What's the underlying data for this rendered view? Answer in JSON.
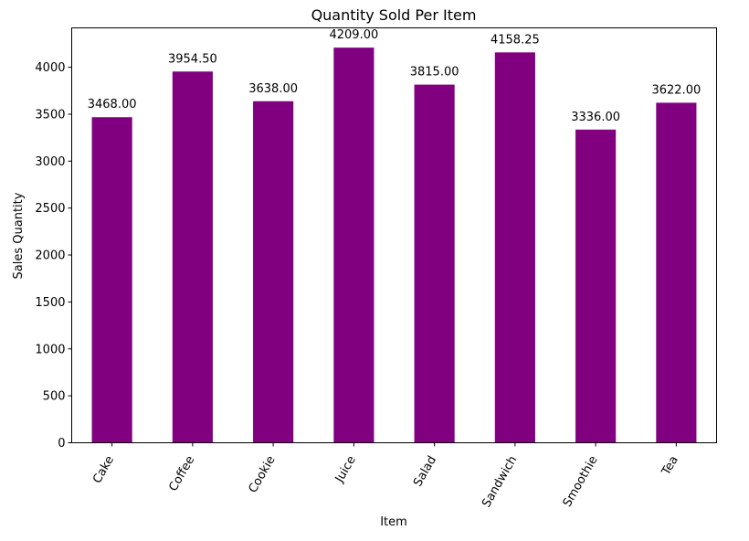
{
  "chart_data": {
    "type": "bar",
    "title": "Quantity Sold Per Item",
    "xlabel": "Item",
    "ylabel": "Sales Quantity",
    "categories": [
      "Cake",
      "Coffee",
      "Cookie",
      "Juice",
      "Salad",
      "Sandwich",
      "Smoothie",
      "Tea"
    ],
    "values": [
      3468.0,
      3954.5,
      3638.0,
      4209.0,
      3815.0,
      4158.25,
      3336.0,
      3622.0
    ],
    "value_labels": [
      "3468.00",
      "3954.50",
      "3638.00",
      "4209.00",
      "3815.00",
      "4158.25",
      "3336.00",
      "3622.00"
    ],
    "yticks": [
      0,
      500,
      1000,
      1500,
      2000,
      2500,
      3000,
      3500,
      4000
    ],
    "ylim": [
      0,
      4419.45
    ],
    "grid": false,
    "bar_color": "#800080"
  }
}
